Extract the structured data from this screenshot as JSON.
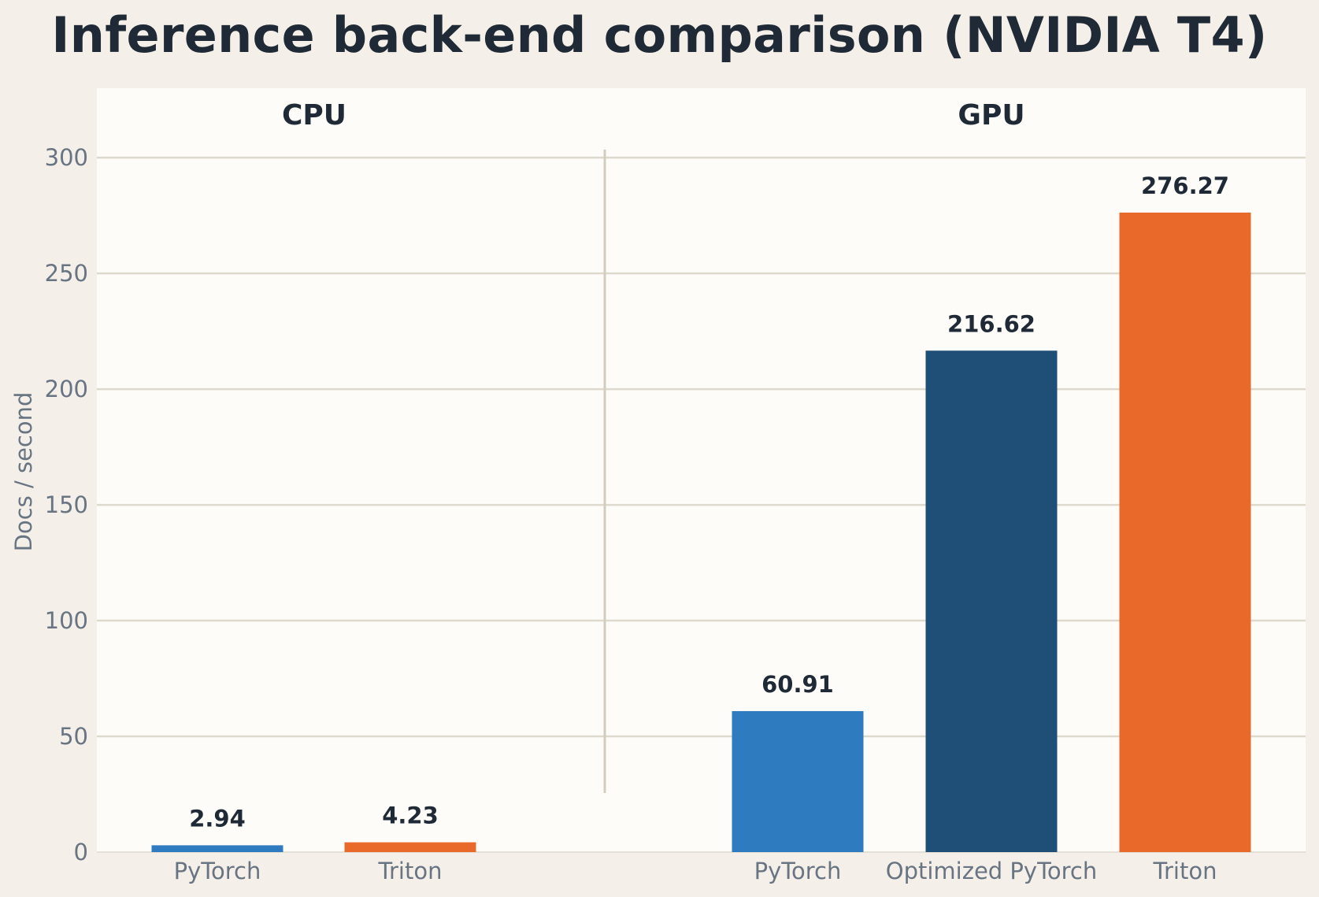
{
  "chart_data": {
    "type": "bar",
    "title": "Inference back-end comparison (NVIDIA T4)",
    "ylabel": "Docs / second",
    "xlabel": "",
    "ylim": [
      0,
      330
    ],
    "yticks": [
      0,
      50,
      100,
      150,
      200,
      250,
      300
    ],
    "grid": true,
    "groups": [
      {
        "name": "CPU",
        "bars": [
          {
            "category": "PyTorch",
            "value": 2.94,
            "label": "2.94",
            "color": "#2f7bbf"
          },
          {
            "category": "Triton",
            "value": 4.23,
            "label": "4.23",
            "color": "#e8692a"
          }
        ]
      },
      {
        "name": "GPU",
        "bars": [
          {
            "category": "PyTorch",
            "value": 60.91,
            "label": "60.91",
            "color": "#2f7bbf"
          },
          {
            "category": "Optimized PyTorch",
            "value": 216.62,
            "label": "216.62",
            "color": "#1f4e77"
          },
          {
            "category": "Triton",
            "value": 276.27,
            "label": "276.27",
            "color": "#e8692a"
          }
        ]
      }
    ]
  },
  "colors": {
    "page_background": "#f4f0e9",
    "plot_background": "#fdfcf8",
    "gridline": "#ddd9cd",
    "title_text": "#1f2a36",
    "tick_text": "#687482"
  }
}
